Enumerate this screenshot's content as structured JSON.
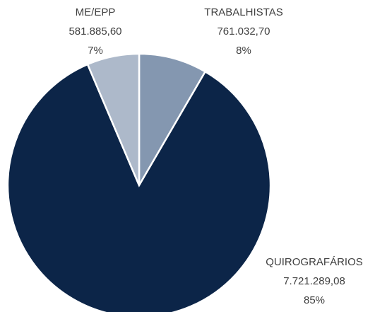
{
  "chart_data": {
    "type": "pie",
    "categories": [
      "TRABALHISTAS",
      "QUIROGRAFÁRIOS",
      "ME/EPP"
    ],
    "values": [
      761032.7,
      7721289.08,
      581885.6
    ],
    "value_labels": [
      "761.032,70",
      "7.721.289,08",
      "581.885,60"
    ],
    "percent_labels": [
      "8%",
      "85%",
      "7%"
    ],
    "colors": [
      "#8497b0",
      "#0c2548",
      "#adb9ca"
    ]
  }
}
